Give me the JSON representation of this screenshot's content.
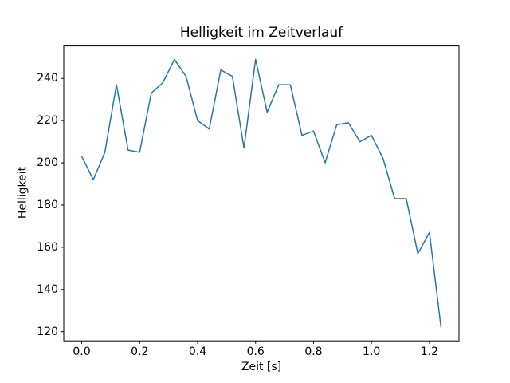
{
  "chart_data": {
    "type": "line",
    "title": "Helligkeit im Zeitverlauf",
    "xlabel": "Zeit [s]",
    "ylabel": "Helligkeit",
    "x": [
      0.0,
      0.04,
      0.08,
      0.12,
      0.16,
      0.2,
      0.24,
      0.28,
      0.32,
      0.36,
      0.4,
      0.44,
      0.48,
      0.52,
      0.56,
      0.6,
      0.64,
      0.68,
      0.72,
      0.76,
      0.8,
      0.84,
      0.88,
      0.92,
      0.96,
      1.0,
      1.04,
      1.08,
      1.12,
      1.16,
      1.2,
      1.24
    ],
    "values": [
      203,
      192,
      205,
      237,
      206,
      205,
      233,
      238,
      249,
      241,
      220,
      216,
      244,
      241,
      207,
      249,
      224,
      237,
      237,
      213,
      215,
      200,
      218,
      219,
      210,
      213,
      202,
      183,
      183,
      157,
      167,
      122
    ],
    "line_color": "#1f77b4",
    "axis_color": "#000000",
    "background_color": "#ffffff",
    "xlim": [
      -0.062,
      1.302
    ],
    "ylim": [
      115.65,
      255.35
    ],
    "x_ticks": [
      0.0,
      0.2,
      0.4,
      0.6,
      0.8,
      1.0,
      1.2
    ],
    "x_tick_labels": [
      "0.0",
      "0.2",
      "0.4",
      "0.6",
      "0.8",
      "1.0",
      "1.2"
    ],
    "y_ticks": [
      120,
      140,
      160,
      180,
      200,
      220,
      240
    ],
    "y_tick_labels": [
      "120",
      "140",
      "160",
      "180",
      "200",
      "220",
      "240"
    ],
    "grid": false,
    "legend": null
  }
}
